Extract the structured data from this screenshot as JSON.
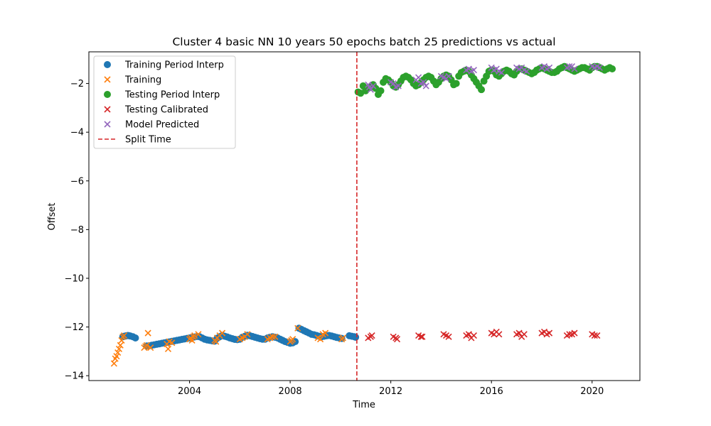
{
  "chart_data": {
    "type": "scatter",
    "title": "Cluster 4 basic NN 10 years 50 epochs batch 25 predictions vs actual",
    "xlabel": "Time",
    "ylabel": "Offset",
    "xlim": [
      2000.0,
      2021.9
    ],
    "ylim": [
      -14.2,
      -0.7
    ],
    "x_ticks": [
      2004,
      2008,
      2012,
      2016,
      2020
    ],
    "x_tick_labels": [
      "2004",
      "2008",
      "2012",
      "2016",
      "2020"
    ],
    "y_ticks": [
      -14,
      -12,
      -10,
      -8,
      -6,
      -4,
      -2
    ],
    "y_tick_labels": [
      "−14",
      "−12",
      "−10",
      "−8",
      "−6",
      "−4",
      "−2"
    ],
    "legend_position": "upper-left",
    "split_time": 2010.65,
    "series": [
      {
        "name": "Training Period Interp",
        "marker": "circle",
        "color": "#1f77b4",
        "x": [
          2001.35,
          2001.4,
          2001.45,
          2001.5,
          2001.55,
          2001.6,
          2001.65,
          2001.75,
          2001.85,
          2002.3,
          2002.4,
          2002.5,
          2002.6,
          2002.7,
          2002.8,
          2002.9,
          2003.0,
          2003.1,
          2003.2,
          2003.3,
          2003.4,
          2003.5,
          2003.6,
          2003.7,
          2003.8,
          2003.9,
          2004.0,
          2004.1,
          2004.2,
          2004.3,
          2004.4,
          2004.5,
          2004.6,
          2004.7,
          2004.8,
          2004.9,
          2005.0,
          2005.1,
          2005.2,
          2005.3,
          2005.4,
          2005.5,
          2005.6,
          2005.7,
          2005.8,
          2005.9,
          2006.0,
          2006.1,
          2006.2,
          2006.3,
          2006.4,
          2006.5,
          2006.6,
          2006.7,
          2006.8,
          2006.9,
          2007.0,
          2007.1,
          2007.2,
          2007.3,
          2007.4,
          2007.5,
          2007.6,
          2007.7,
          2007.8,
          2007.9,
          2008.0,
          2008.1,
          2008.2,
          2008.35,
          2008.45,
          2008.55,
          2008.65,
          2008.75,
          2008.85,
          2008.95,
          2009.05,
          2009.15,
          2009.25,
          2009.35,
          2009.45,
          2009.55,
          2009.65,
          2009.75,
          2009.85,
          2009.95,
          2010.05,
          2010.35,
          2010.45,
          2010.55,
          2010.6
        ],
        "y": [
          -12.4,
          -12.38,
          -12.37,
          -12.36,
          -12.35,
          -12.36,
          -12.37,
          -12.4,
          -12.45,
          -12.78,
          -12.77,
          -12.75,
          -12.73,
          -12.71,
          -12.69,
          -12.67,
          -12.65,
          -12.63,
          -12.61,
          -12.59,
          -12.57,
          -12.55,
          -12.53,
          -12.51,
          -12.49,
          -12.47,
          -12.45,
          -12.43,
          -12.41,
          -12.39,
          -12.4,
          -12.45,
          -12.5,
          -12.53,
          -12.55,
          -12.57,
          -12.58,
          -12.46,
          -12.4,
          -12.35,
          -12.38,
          -12.41,
          -12.45,
          -12.48,
          -12.51,
          -12.52,
          -12.5,
          -12.42,
          -12.38,
          -12.34,
          -12.36,
          -12.39,
          -12.42,
          -12.45,
          -12.48,
          -12.5,
          -12.5,
          -12.45,
          -12.42,
          -12.4,
          -12.42,
          -12.45,
          -12.5,
          -12.55,
          -12.6,
          -12.63,
          -12.67,
          -12.65,
          -12.6,
          -12.05,
          -12.1,
          -12.15,
          -12.2,
          -12.25,
          -12.3,
          -12.32,
          -12.35,
          -12.38,
          -12.4,
          -12.38,
          -12.36,
          -12.35,
          -12.37,
          -12.4,
          -12.43,
          -12.45,
          -12.47,
          -12.36,
          -12.38,
          -12.4,
          -12.42
        ]
      },
      {
        "name": "Training",
        "marker": "x",
        "color": "#ff7f0e",
        "x": [
          2001.0,
          2001.05,
          2001.1,
          2001.15,
          2001.2,
          2001.25,
          2001.3,
          2001.35,
          2001.4,
          2002.2,
          2002.25,
          2002.3,
          2002.35,
          2002.45,
          2003.1,
          2003.15,
          2003.2,
          2003.3,
          2004.0,
          2004.05,
          2004.1,
          2004.15,
          2004.2,
          2004.35,
          2005.0,
          2005.05,
          2005.1,
          2005.2,
          2005.3,
          2006.0,
          2006.1,
          2006.2,
          2006.3,
          2007.1,
          2007.2,
          2007.3,
          2007.4,
          2008.0,
          2008.05,
          2008.1,
          2008.3,
          2009.1,
          2009.2,
          2009.3,
          2009.4,
          2010.05,
          2010.1
        ],
        "y": [
          -13.5,
          -13.3,
          -13.2,
          -13.05,
          -12.9,
          -12.75,
          -12.55,
          -12.4,
          -12.35,
          -12.85,
          -12.8,
          -12.75,
          -12.25,
          -12.85,
          -12.7,
          -12.9,
          -12.6,
          -12.65,
          -12.5,
          -12.45,
          -12.55,
          -12.4,
          -12.35,
          -12.3,
          -12.55,
          -12.6,
          -12.45,
          -12.35,
          -12.25,
          -12.5,
          -12.45,
          -12.4,
          -12.3,
          -12.5,
          -12.45,
          -12.4,
          -12.4,
          -12.6,
          -12.55,
          -12.5,
          -12.05,
          -12.45,
          -12.5,
          -12.3,
          -12.25,
          -12.5,
          -12.45
        ]
      },
      {
        "name": "Testing Period Interp",
        "marker": "circle",
        "color": "#2ca02c",
        "x": [
          2010.7,
          2010.8,
          2010.9,
          2011.0,
          2011.1,
          2011.2,
          2011.3,
          2011.4,
          2011.5,
          2011.6,
          2011.7,
          2011.8,
          2011.9,
          2012.0,
          2012.1,
          2012.2,
          2012.3,
          2012.4,
          2012.5,
          2012.6,
          2012.7,
          2012.8,
          2012.9,
          2013.0,
          2013.1,
          2013.2,
          2013.3,
          2013.4,
          2013.5,
          2013.6,
          2013.7,
          2013.8,
          2013.9,
          2014.0,
          2014.1,
          2014.2,
          2014.3,
          2014.4,
          2014.5,
          2014.6,
          2014.7,
          2014.8,
          2014.9,
          2015.0,
          2015.1,
          2015.2,
          2015.3,
          2015.4,
          2015.5,
          2015.6,
          2015.7,
          2015.8,
          2015.9,
          2016.0,
          2016.1,
          2016.2,
          2016.3,
          2016.4,
          2016.5,
          2016.6,
          2016.7,
          2016.8,
          2016.9,
          2017.0,
          2017.1,
          2017.2,
          2017.3,
          2017.4,
          2017.5,
          2017.6,
          2017.7,
          2017.8,
          2017.9,
          2018.0,
          2018.1,
          2018.2,
          2018.3,
          2018.4,
          2018.5,
          2018.6,
          2018.7,
          2018.8,
          2018.9,
          2019.0,
          2019.1,
          2019.2,
          2019.3,
          2019.4,
          2019.5,
          2019.6,
          2019.7,
          2019.8,
          2019.9,
          2020.0,
          2020.1,
          2020.2,
          2020.3,
          2020.4,
          2020.5,
          2020.6,
          2020.7,
          2020.8
        ],
        "y": [
          -2.35,
          -2.4,
          -2.1,
          -2.3,
          -2.2,
          -2.15,
          -2.05,
          -2.2,
          -2.45,
          -2.3,
          -1.95,
          -1.8,
          -1.85,
          -1.95,
          -2.1,
          -2.15,
          -2.05,
          -1.9,
          -1.75,
          -1.7,
          -1.75,
          -1.85,
          -2.0,
          -2.1,
          -2.05,
          -1.95,
          -1.85,
          -1.75,
          -1.7,
          -1.75,
          -1.9,
          -2.05,
          -1.95,
          -1.8,
          -1.7,
          -1.65,
          -1.7,
          -1.85,
          -2.05,
          -2.0,
          -1.7,
          -1.55,
          -1.5,
          -1.45,
          -1.5,
          -1.65,
          -1.8,
          -1.95,
          -2.1,
          -2.25,
          -1.9,
          -1.7,
          -1.5,
          -1.45,
          -1.5,
          -1.65,
          -1.7,
          -1.6,
          -1.5,
          -1.45,
          -1.5,
          -1.6,
          -1.65,
          -1.5,
          -1.4,
          -1.4,
          -1.45,
          -1.5,
          -1.55,
          -1.6,
          -1.55,
          -1.45,
          -1.4,
          -1.35,
          -1.4,
          -1.45,
          -1.5,
          -1.55,
          -1.55,
          -1.5,
          -1.4,
          -1.35,
          -1.3,
          -1.35,
          -1.4,
          -1.45,
          -1.5,
          -1.45,
          -1.4,
          -1.35,
          -1.35,
          -1.4,
          -1.45,
          -1.35,
          -1.3,
          -1.3,
          -1.35,
          -1.4,
          -1.45,
          -1.4,
          -1.35,
          -1.4
        ]
      },
      {
        "name": "Testing Calibrated",
        "marker": "x",
        "color": "#d62728",
        "x": [
          2011.1,
          2011.2,
          2011.25,
          2012.1,
          2012.2,
          2012.25,
          2013.1,
          2013.2,
          2013.25,
          2014.1,
          2014.2,
          2014.3,
          2015.0,
          2015.1,
          2015.2,
          2015.3,
          2016.0,
          2016.1,
          2016.2,
          2016.3,
          2017.0,
          2017.1,
          2017.2,
          2017.3,
          2018.0,
          2018.1,
          2018.2,
          2018.3,
          2019.0,
          2019.1,
          2019.2,
          2019.3,
          2020.0,
          2020.1,
          2020.2
        ],
        "y": [
          -12.45,
          -12.4,
          -12.35,
          -12.4,
          -12.45,
          -12.5,
          -12.35,
          -12.4,
          -12.4,
          -12.3,
          -12.35,
          -12.4,
          -12.35,
          -12.3,
          -12.45,
          -12.35,
          -12.25,
          -12.3,
          -12.2,
          -12.3,
          -12.3,
          -12.25,
          -12.4,
          -12.3,
          -12.25,
          -12.2,
          -12.3,
          -12.25,
          -12.35,
          -12.3,
          -12.3,
          -12.25,
          -12.3,
          -12.35,
          -12.35
        ]
      },
      {
        "name": "Model Predicted",
        "marker": "x",
        "color": "#9467bd",
        "x": [
          2011.1,
          2011.15,
          2011.2,
          2011.3,
          2012.0,
          2012.1,
          2012.2,
          2012.3,
          2013.0,
          2013.1,
          2013.2,
          2013.3,
          2013.4,
          2014.0,
          2014.1,
          2014.2,
          2014.3,
          2015.0,
          2015.1,
          2015.2,
          2015.3,
          2016.0,
          2016.1,
          2016.2,
          2016.3,
          2016.4,
          2017.0,
          2017.1,
          2017.2,
          2017.3,
          2017.4,
          2018.0,
          2018.1,
          2018.2,
          2018.3,
          2019.0,
          2019.1,
          2019.2,
          2019.3,
          2020.0,
          2020.1,
          2020.2,
          2020.3
        ],
        "y": [
          -2.05,
          -2.15,
          -2.25,
          -2.1,
          -1.95,
          -2.0,
          -2.15,
          -2.1,
          -1.85,
          -1.75,
          -2.0,
          -1.95,
          -2.1,
          -1.7,
          -1.75,
          -1.8,
          -1.7,
          -1.45,
          -1.4,
          -1.5,
          -1.45,
          -1.35,
          -1.45,
          -1.4,
          -1.5,
          -1.55,
          -1.35,
          -1.4,
          -1.35,
          -1.45,
          -1.5,
          -1.35,
          -1.3,
          -1.4,
          -1.35,
          -1.35,
          -1.3,
          -1.3,
          -1.4,
          -1.3,
          -1.35,
          -1.3,
          -1.35
        ]
      }
    ],
    "split_line": {
      "name": "Split Time",
      "color": "#d62728",
      "style": "dashed"
    }
  }
}
